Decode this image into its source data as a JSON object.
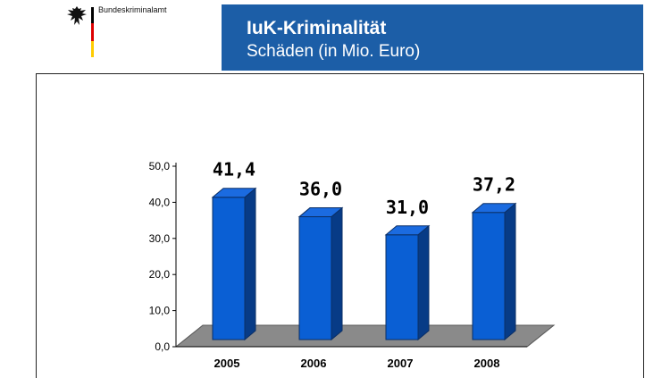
{
  "header": {
    "agency": "Bundeskriminalamt",
    "title": "IuK-Kriminalität",
    "subtitle": "Schäden (in Mio. Euro)",
    "band_color": "#1c5ea7"
  },
  "chart_data": {
    "type": "bar",
    "title": "IuK-Kriminalität",
    "subtitle": "Schäden (in Mio. Euro)",
    "categories": [
      "2005",
      "2006",
      "2007",
      "2008"
    ],
    "values": [
      41.4,
      36.0,
      31.0,
      37.2
    ],
    "value_labels": [
      "41,4",
      "36,0",
      "31,0",
      "37,2"
    ],
    "yticks": [
      "0,0",
      "10,0",
      "20,0",
      "30,0",
      "40,0",
      "50,0"
    ],
    "ylim": [
      0,
      50
    ],
    "xlabel": "",
    "ylabel": "",
    "bar_color": "#0a5fd4",
    "grid": false,
    "legend": "none"
  }
}
